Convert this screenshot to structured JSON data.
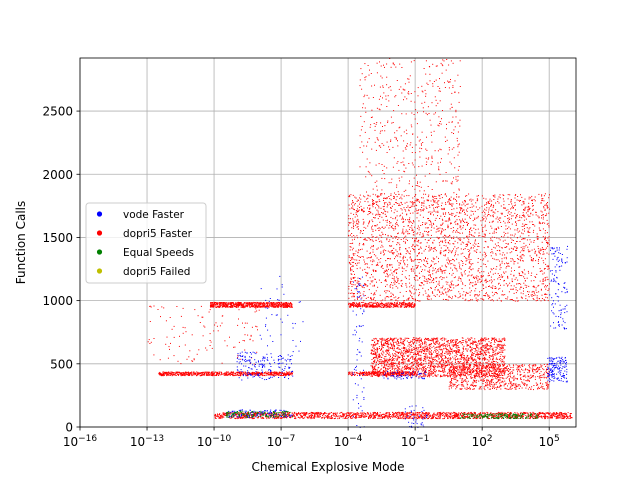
{
  "chart_data": {
    "type": "scatter",
    "title": "",
    "xlabel": "Chemical Explosive Mode",
    "ylabel": "Function Calls",
    "xscale": "log",
    "xlim_exponent": [
      -16,
      6.2
    ],
    "ylim": [
      0,
      2920
    ],
    "grid": true,
    "legend_position": "center-left",
    "x_ticks": [
      {
        "base": "10",
        "exp": "−16",
        "value": -16
      },
      {
        "base": "10",
        "exp": "−13",
        "value": -13
      },
      {
        "base": "10",
        "exp": "−10",
        "value": -10
      },
      {
        "base": "10",
        "exp": "−7",
        "value": -7
      },
      {
        "base": "10",
        "exp": "−4",
        "value": -4
      },
      {
        "base": "10",
        "exp": "−1",
        "value": -1
      },
      {
        "base": "10",
        "exp": "2",
        "value": 2
      },
      {
        "base": "10",
        "exp": "5",
        "value": 5
      }
    ],
    "y_ticks": [
      {
        "label": "0",
        "value": 0
      },
      {
        "label": "500",
        "value": 500
      },
      {
        "label": "1000",
        "value": 1000
      },
      {
        "label": "1500",
        "value": 1500
      },
      {
        "label": "2000",
        "value": 2000
      },
      {
        "label": "2500",
        "value": 2500
      }
    ],
    "series": [
      {
        "name": "vode Faster",
        "color": "#0000ff",
        "clusters": [
          {
            "x": [
              -9,
              -6.5
            ],
            "y": [
              370,
              600
            ],
            "n": 180
          },
          {
            "x": [
              -8,
              -6
            ],
            "y": [
              600,
              1200
            ],
            "n": 40
          },
          {
            "x": [
              -9.5,
              -6.5
            ],
            "y": [
              80,
              140
            ],
            "n": 120
          },
          {
            "x": [
              -3.8,
              -3.3
            ],
            "y": [
              0,
              1200
            ],
            "n": 70
          },
          {
            "x": [
              -1.5,
              -0.5
            ],
            "y": [
              0,
              180
            ],
            "n": 40
          },
          {
            "x": [
              4.9,
              5.8
            ],
            "y": [
              360,
              560
            ],
            "n": 150
          },
          {
            "x": [
              5,
              5.8
            ],
            "y": [
              780,
              1440
            ],
            "n": 120
          },
          {
            "x": [
              -2.5,
              -0.5
            ],
            "y": [
              380,
              450
            ],
            "n": 60
          }
        ]
      },
      {
        "name": "dopri5 Faster",
        "color": "#ff0000",
        "clusters": [
          {
            "x": [
              -10,
              6
            ],
            "y": [
              70,
              120
            ],
            "n": 1800
          },
          {
            "x": [
              -12.5,
              -6.5
            ],
            "y": [
              410,
              440
            ],
            "n": 700
          },
          {
            "x": [
              -10.2,
              -6.5
            ],
            "y": [
              950,
              990
            ],
            "n": 700
          },
          {
            "x": [
              -4,
              -1
            ],
            "y": [
              950,
              990
            ],
            "n": 400
          },
          {
            "x": [
              -4,
              -1
            ],
            "y": [
              410,
              440
            ],
            "n": 300
          },
          {
            "x": [
              -4,
              5
            ],
            "y": [
              1000,
              1850
            ],
            "n": 2600
          },
          {
            "x": [
              -3,
              3
            ],
            "y": [
              400,
              710
            ],
            "n": 2200
          },
          {
            "x": [
              -3.5,
              1
            ],
            "y": [
              1700,
              2920
            ],
            "n": 500
          },
          {
            "x": [
              0.5,
              5
            ],
            "y": [
              300,
              500
            ],
            "n": 700
          },
          {
            "x": [
              -13,
              -8
            ],
            "y": [
              500,
              1000
            ],
            "n": 120
          }
        ]
      },
      {
        "name": "Equal Speeds",
        "color": "#008000",
        "clusters": [
          {
            "x": [
              -9.5,
              -6.5
            ],
            "y": [
              80,
              130
            ],
            "n": 150
          },
          {
            "x": [
              1,
              4.5
            ],
            "y": [
              70,
              110
            ],
            "n": 200
          }
        ]
      },
      {
        "name": "dopri5 Failed",
        "color": "#bfbf00",
        "clusters": []
      }
    ]
  }
}
